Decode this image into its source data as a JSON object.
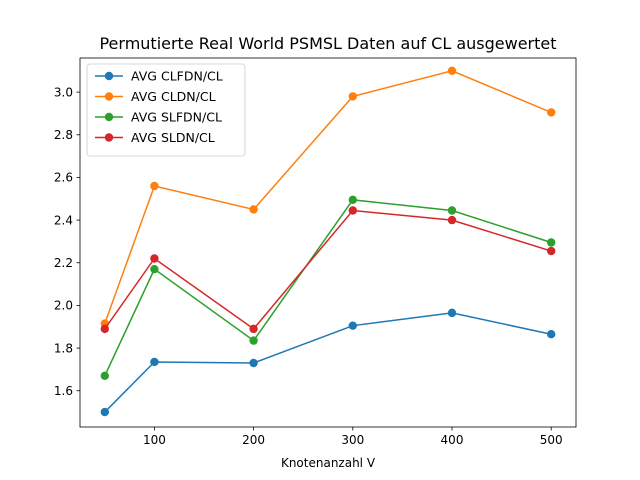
{
  "chart_data": {
    "type": "line",
    "title": "Permutierte Real World PSMSL Daten auf CL ausgewertet",
    "xlabel": "Knotenanzahl V",
    "ylabel": "",
    "x": [
      50,
      100,
      200,
      300,
      400,
      500
    ],
    "xticks": [
      100,
      200,
      300,
      400,
      500
    ],
    "yticks": [
      1.6,
      1.8,
      2.0,
      2.2,
      2.4,
      2.6,
      2.8,
      3.0
    ],
    "xlim": [
      25,
      525
    ],
    "ylim": [
      1.43,
      3.16
    ],
    "grid": false,
    "legend_position": "top-left",
    "series": [
      {
        "name": "AVG CLFDN/CL",
        "color": "#1f77b4",
        "values": [
          1.5,
          1.735,
          1.73,
          1.905,
          1.965,
          1.865
        ]
      },
      {
        "name": "AVG CLDN/CL",
        "color": "#ff7f0e",
        "values": [
          1.915,
          2.56,
          2.45,
          2.98,
          3.1,
          2.905
        ]
      },
      {
        "name": "AVG SLFDN/CL",
        "color": "#2ca02c",
        "values": [
          1.67,
          2.17,
          1.835,
          2.495,
          2.445,
          2.295
        ]
      },
      {
        "name": "AVG SLDN/CL",
        "color": "#d62728",
        "values": [
          1.89,
          2.22,
          1.89,
          2.445,
          2.4,
          2.255
        ]
      }
    ]
  }
}
